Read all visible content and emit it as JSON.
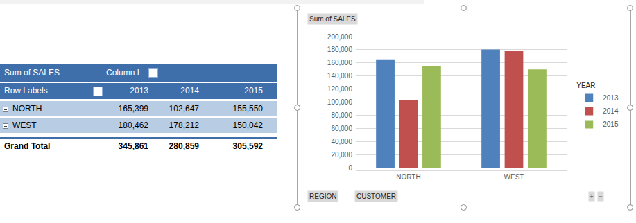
{
  "chart_data": {
    "type": "bar",
    "title": "Sum of SALES",
    "categories": [
      "NORTH",
      "WEST"
    ],
    "legend_title": "YEAR",
    "series": [
      {
        "name": "2013",
        "color": "#4f81bd",
        "values": [
          165399,
          180462
        ]
      },
      {
        "name": "2014",
        "color": "#c0504d",
        "values": [
          102647,
          178212
        ]
      },
      {
        "name": "2015",
        "color": "#9bbb59",
        "values": [
          155550,
          150042
        ]
      }
    ],
    "ylim": [
      0,
      200000
    ],
    "yticks": [
      0,
      {
        "value": 20000,
        "label": "20,000"
      },
      {
        "value": 40000,
        "label": "40,000"
      },
      {
        "value": 60000,
        "label": "60,000"
      },
      {
        "value": 80000,
        "label": "80,000"
      },
      {
        "value": 100000,
        "label": "100,000"
      },
      {
        "value": 120000,
        "label": "120,000"
      },
      {
        "value": 140000,
        "label": "140,000"
      },
      {
        "value": 160000,
        "label": "160,000"
      },
      {
        "value": 180000,
        "label": "180,000"
      },
      {
        "value": 200000,
        "label": "200,000"
      }
    ],
    "grid": true,
    "legend": "right",
    "filter_buttons": [
      "REGION",
      "CUSTOMER"
    ],
    "chart_buttons": [
      "+",
      "−"
    ]
  },
  "table": {
    "header": [
      [
        "Sum of SALES",
        "Column L"
      ],
      [
        "Row Labels",
        "2013",
        "2014",
        "2015"
      ]
    ],
    "rows": [
      [
        "NORTH",
        "165,399",
        "102,647",
        "155,550"
      ],
      [
        "WEST",
        "180,462",
        "178,212",
        "150,042"
      ]
    ],
    "total": [
      "Grand Total",
      "345,861",
      "280,859",
      "305,592"
    ]
  }
}
